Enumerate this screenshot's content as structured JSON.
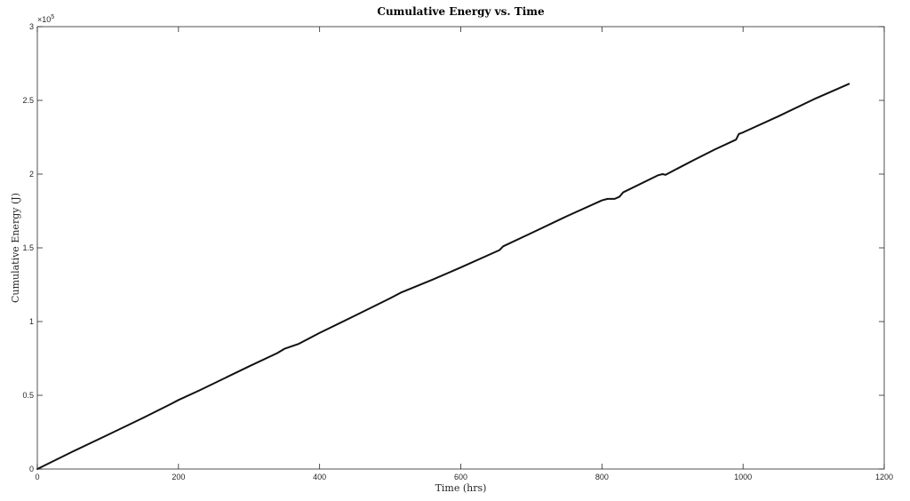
{
  "chart_data": {
    "type": "line",
    "title": "Cumulative Energy vs. Time",
    "xlabel": "Time (hrs)",
    "ylabel": "Cumulative Energy (J)",
    "y_exponent_label": "×10",
    "y_exponent_power": "5",
    "xlim": [
      0,
      1200
    ],
    "ylim": [
      0,
      3
    ],
    "x_ticks": [
      0,
      200,
      400,
      600,
      800,
      1000,
      1200
    ],
    "x_tick_labels": [
      "0",
      "200",
      "400",
      "600",
      "800",
      "1000",
      "1200"
    ],
    "y_ticks": [
      0,
      0.5,
      1,
      1.5,
      2,
      2.5,
      3
    ],
    "y_tick_labels": [
      "0",
      "0.5",
      "1",
      "1.5",
      "2",
      "2.5",
      "3"
    ],
    "grid": false,
    "line_color": "#111111",
    "series": [
      {
        "x": [
          0,
          50,
          100,
          150,
          190,
          200,
          230,
          300,
          340,
          350,
          370,
          400,
          450,
          500,
          515,
          560,
          600,
          655,
          660,
          700,
          750,
          800,
          808,
          818,
          825,
          830,
          880,
          886,
          890,
          930,
          960,
          990,
          994,
          1000,
          1050,
          1100,
          1150
        ],
        "y": [
          0,
          0.118,
          0.232,
          0.347,
          0.443,
          0.468,
          0.534,
          0.696,
          0.786,
          0.815,
          0.848,
          0.923,
          1.04,
          1.158,
          1.196,
          1.284,
          1.367,
          1.485,
          1.51,
          1.6,
          1.714,
          1.822,
          1.832,
          1.832,
          1.847,
          1.876,
          1.993,
          2.0,
          1.995,
          2.095,
          2.167,
          2.234,
          2.272,
          2.283,
          2.392,
          2.507,
          2.612
        ]
      }
    ]
  }
}
